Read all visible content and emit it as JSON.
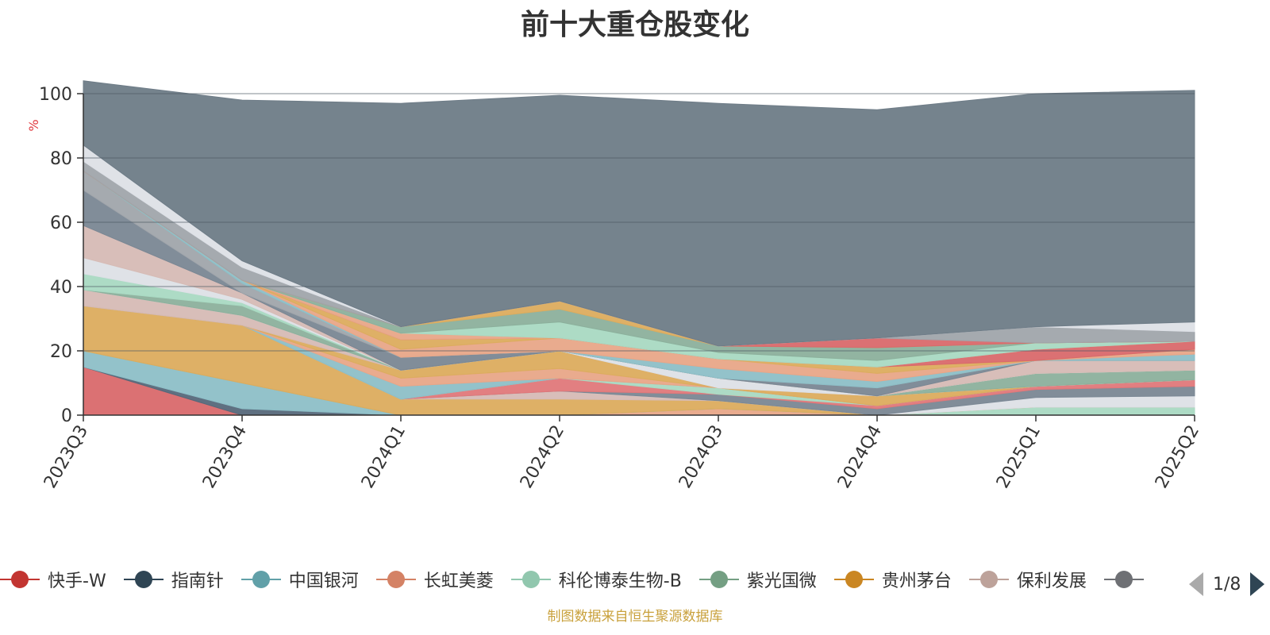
{
  "title": "前十大重仓股变化",
  "source_note": "制图数据来自恒生聚源数据库",
  "legend_page": "1/8",
  "colors": {
    "background_area": "#6e7c87",
    "axis": "#333333",
    "unit_label": "#e0393e"
  },
  "chart_data": {
    "type": "area",
    "stacked": true,
    "title": "前十大重仓股变化",
    "ylabel": "%",
    "ylim": [
      0,
      100
    ],
    "yticks": [
      "0",
      "20",
      "40",
      "60",
      "80",
      "100"
    ],
    "categories": [
      "2023Q3",
      "2023Q4",
      "2024Q1",
      "2024Q2",
      "2024Q3",
      "2024Q4",
      "2025Q1",
      "2025Q2"
    ],
    "grid": true,
    "legend_position": "bottom",
    "series": [
      {
        "name": "快手-W",
        "color": "#d9696b",
        "values": [
          15,
          0,
          0,
          0,
          0,
          0,
          0,
          0
        ]
      },
      {
        "name": "指南针",
        "color": "#56687a",
        "values": [
          0,
          2,
          0,
          0,
          0,
          0,
          0,
          0
        ]
      },
      {
        "name": "中国银河",
        "color": "#8dbfc7",
        "values": [
          5,
          8,
          0,
          0,
          0,
          0,
          0,
          0
        ]
      },
      {
        "name": "长虹美菱",
        "color": "#e8a688",
        "values": [
          0,
          0,
          0,
          0,
          2,
          0,
          0,
          0
        ]
      },
      {
        "name": "科伦博泰生物-B",
        "color": "#a9d9c2",
        "values": [
          0,
          0,
          0,
          0,
          0,
          0,
          2.5,
          2.5
        ]
      },
      {
        "name": "紫光国微",
        "color": "#8cb09c",
        "values": [
          0,
          0,
          0,
          0,
          0,
          0,
          0,
          0
        ]
      },
      {
        "name": "贵州茅台",
        "color": "#dcac5e",
        "values": [
          14,
          18,
          5,
          5,
          2.5,
          0,
          0,
          0
        ]
      },
      {
        "name": "保利发展",
        "color": "#d6bbb5",
        "values": [
          0,
          0,
          0,
          2.5,
          0,
          0,
          0,
          0
        ]
      },
      {
        "name": "",
        "color": "#dde0e6",
        "values": [
          0,
          0,
          0,
          0,
          0,
          0,
          3,
          3.5
        ]
      },
      {
        "name": "",
        "color": "#7a8794",
        "values": [
          0,
          0,
          0,
          0,
          2,
          2,
          2.5,
          3
        ]
      },
      {
        "name": "",
        "color": "#e0787a",
        "values": [
          0,
          0,
          0,
          4,
          0,
          1,
          1,
          2
        ]
      },
      {
        "name": "",
        "color": "#a9d9c2",
        "values": [
          0,
          0,
          0,
          0,
          2,
          0,
          0,
          0
        ]
      },
      {
        "name": "",
        "color": "#8dbfc7",
        "values": [
          0,
          0,
          4,
          0,
          0,
          0,
          0,
          0
        ]
      },
      {
        "name": "",
        "color": "#e8a688",
        "values": [
          0,
          0,
          2.5,
          3,
          0,
          0,
          0,
          0
        ]
      },
      {
        "name": "",
        "color": "#dcac5e",
        "values": [
          0,
          0,
          2.5,
          5.5,
          0,
          3,
          0,
          0
        ]
      },
      {
        "name": "",
        "color": "#d6bbb5",
        "values": [
          5,
          3,
          0,
          0,
          0,
          0,
          0,
          0
        ]
      },
      {
        "name": "",
        "color": "#dde0e6",
        "values": [
          0,
          0,
          0,
          0,
          3,
          0,
          0,
          0
        ]
      },
      {
        "name": "",
        "color": "#8cb09c",
        "values": [
          0,
          3,
          0,
          0,
          0,
          0,
          4,
          3
        ]
      },
      {
        "name": "",
        "color": "#a9d9c2",
        "values": [
          5,
          1,
          0,
          0,
          0,
          0,
          0,
          0
        ]
      },
      {
        "name": "",
        "color": "#dde0e6",
        "values": [
          5,
          1,
          0,
          0,
          0,
          0,
          0,
          0
        ]
      },
      {
        "name": "",
        "color": "#d6bbb5",
        "values": [
          10,
          2,
          0,
          0,
          0,
          0,
          4,
          3
        ]
      },
      {
        "name": "",
        "color": "#7a8794",
        "values": [
          11,
          0,
          4,
          0,
          0,
          2.5,
          0,
          0
        ]
      },
      {
        "name": "",
        "color": "#a0a5ab",
        "values": [
          6,
          3,
          0,
          0,
          0,
          0,
          0,
          0
        ]
      },
      {
        "name": "",
        "color": "#8dbfc7",
        "values": [
          0,
          1,
          0,
          0,
          3,
          2,
          0,
          2
        ]
      },
      {
        "name": "",
        "color": "#e8a688",
        "values": [
          0,
          0,
          2.5,
          4,
          3,
          2.5,
          0,
          1.5
        ]
      },
      {
        "name": "",
        "color": "#dcac5e",
        "values": [
          0,
          0,
          3,
          0,
          0,
          2,
          0,
          0
        ]
      },
      {
        "name": "",
        "color": "#d9696b",
        "values": [
          0,
          0,
          0,
          0,
          0,
          0,
          3.5,
          2.5
        ]
      },
      {
        "name": "",
        "color": "#e8a688",
        "values": [
          0,
          0,
          2,
          0,
          0,
          0,
          0,
          0
        ]
      },
      {
        "name": "",
        "color": "#a9d9c2",
        "values": [
          0,
          0,
          0,
          5,
          2,
          2,
          2,
          0
        ]
      },
      {
        "name": "",
        "color": "#8cb09c",
        "values": [
          0,
          0,
          2,
          4,
          2,
          4,
          0,
          0
        ]
      },
      {
        "name": "",
        "color": "#dcac5e",
        "values": [
          0,
          0,
          0,
          2.5,
          0,
          0,
          0,
          0
        ]
      },
      {
        "name": "",
        "color": "#d9696b",
        "values": [
          0,
          0,
          0,
          0,
          0,
          3,
          0,
          0
        ]
      },
      {
        "name": "",
        "color": "#a0a5ab",
        "values": [
          3,
          4,
          0,
          0,
          0,
          0,
          5,
          3
        ]
      },
      {
        "name": "",
        "color": "#dde0e6",
        "values": [
          5,
          2,
          0,
          0,
          0,
          0,
          0,
          3
        ]
      },
      {
        "name": "",
        "color": "#6e7c87",
        "values": [
          20,
          50,
          69.5,
          64,
          75.5,
          71,
          72.5,
          72
        ]
      }
    ]
  },
  "legend": {
    "items": [
      {
        "label": "快手-W",
        "color": "#c23531"
      },
      {
        "label": "指南针",
        "color": "#2f4554"
      },
      {
        "label": "中国银河",
        "color": "#61a0a8"
      },
      {
        "label": "长虹美菱",
        "color": "#d48265"
      },
      {
        "label": "科伦博泰生物-B",
        "color": "#91c7ae"
      },
      {
        "label": "紫光国微",
        "color": "#749f83"
      },
      {
        "label": "贵州茅台",
        "color": "#ca8622"
      },
      {
        "label": "保利发展",
        "color": "#bda29a"
      }
    ],
    "overflow_item_color": "#6e7074"
  }
}
